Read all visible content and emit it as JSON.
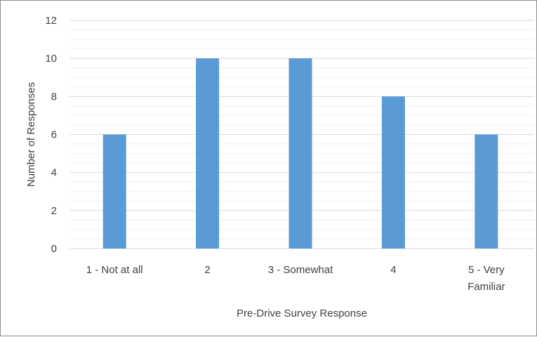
{
  "chart_data": {
    "type": "bar",
    "title": "",
    "categories": [
      [
        "1 - Not at all"
      ],
      [
        "2"
      ],
      [
        "3 - Somewhat"
      ],
      [
        "4"
      ],
      [
        "5 - Very",
        "Familiar"
      ]
    ],
    "values": [
      6,
      10,
      10,
      8,
      6
    ],
    "xlabel": "Pre-Drive Survey Response",
    "ylabel": "Number of Responses",
    "ylim": [
      0,
      12
    ],
    "yticks": [
      0,
      2,
      4,
      6,
      8,
      10,
      12
    ],
    "grid": true,
    "legend": "none",
    "bar_color": "#5b9bd5",
    "grid_color": "#d9d9d9"
  }
}
